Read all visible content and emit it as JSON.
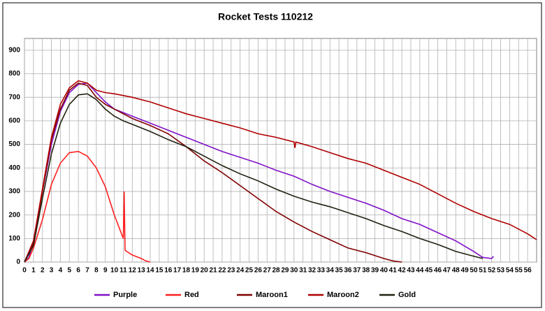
{
  "chart_data": {
    "type": "line",
    "title": "Rocket Tests 110212",
    "xlim": [
      0,
      57
    ],
    "xticks": [
      0,
      1,
      2,
      3,
      4,
      5,
      6,
      7,
      8,
      9,
      10,
      11,
      12,
      13,
      14,
      15,
      16,
      17,
      18,
      19,
      20,
      21,
      22,
      23,
      24,
      25,
      26,
      27,
      28,
      29,
      30,
      31,
      32,
      33,
      34,
      35,
      36,
      37,
      38,
      39,
      40,
      41,
      42,
      43,
      44,
      45,
      46,
      47,
      48,
      49,
      50,
      51,
      52,
      53,
      54,
      55,
      56
    ],
    "ylim": [
      0,
      950
    ],
    "yticks": [
      0,
      100,
      200,
      300,
      400,
      500,
      600,
      700,
      800,
      900
    ],
    "grid": true,
    "legend": "bottom",
    "series": [
      {
        "name": "Purple",
        "color": "#8010c8",
        "x": [
          0,
          0.5,
          1,
          2,
          3,
          4,
          5,
          6,
          7,
          8,
          9,
          10,
          11,
          12,
          14,
          16,
          18,
          20,
          22,
          24,
          26,
          28,
          30,
          32,
          34,
          36,
          38,
          40,
          42,
          44,
          46,
          48,
          50,
          51,
          52,
          52.2
        ],
        "values": [
          0,
          20,
          90,
          300,
          500,
          640,
          720,
          755,
          760,
          720,
          680,
          650,
          635,
          620,
          590,
          560,
          530,
          500,
          470,
          445,
          420,
          390,
          365,
          330,
          300,
          275,
          250,
          220,
          185,
          160,
          125,
          90,
          45,
          20,
          15,
          25
        ]
      },
      {
        "name": "Red",
        "color": "#ff2020",
        "x": [
          0,
          0.5,
          1,
          2,
          3,
          4,
          5,
          6,
          7,
          8,
          9,
          10,
          11,
          11.1,
          11.2,
          12,
          13,
          13.5,
          14
        ],
        "values": [
          0,
          15,
          60,
          180,
          330,
          420,
          465,
          470,
          450,
          400,
          320,
          200,
          100,
          300,
          50,
          30,
          15,
          5,
          0
        ]
      },
      {
        "name": "Maroon1",
        "color": "#800000",
        "x": [
          0,
          1,
          2,
          3,
          4,
          5,
          6,
          7,
          8,
          9,
          10,
          11,
          12,
          14,
          16,
          18,
          20,
          22,
          24,
          26,
          28,
          30,
          32,
          34,
          36,
          38,
          40,
          41,
          42
        ],
        "values": [
          0,
          80,
          300,
          520,
          650,
          730,
          760,
          750,
          700,
          670,
          650,
          630,
          610,
          580,
          545,
          490,
          430,
          380,
          325,
          270,
          215,
          170,
          130,
          95,
          60,
          40,
          15,
          5,
          0
        ]
      },
      {
        "name": "Maroon2",
        "color": "#b00000",
        "x": [
          0,
          1,
          2,
          3,
          4,
          5,
          6,
          7,
          8,
          9,
          10,
          12,
          14,
          16,
          18,
          20,
          22,
          24,
          26,
          28,
          30,
          30.1,
          30.2,
          32,
          34,
          36,
          38,
          40,
          42,
          44,
          46,
          48,
          50,
          52,
          54,
          56,
          57
        ],
        "values": [
          0,
          90,
          310,
          530,
          670,
          740,
          770,
          760,
          730,
          720,
          715,
          700,
          680,
          655,
          630,
          610,
          590,
          570,
          545,
          530,
          510,
          485,
          510,
          490,
          465,
          440,
          420,
          390,
          360,
          330,
          290,
          250,
          215,
          185,
          160,
          120,
          95
        ]
      },
      {
        "name": "Gold",
        "color": "#202010",
        "x": [
          0,
          1,
          2,
          3,
          4,
          5,
          6,
          7,
          8,
          9,
          10,
          11,
          12,
          14,
          16,
          18,
          20,
          22,
          24,
          26,
          28,
          30,
          32,
          34,
          36,
          38,
          40,
          42,
          44,
          46,
          48,
          50,
          51
        ],
        "values": [
          0,
          70,
          270,
          460,
          590,
          670,
          710,
          715,
          690,
          650,
          620,
          600,
          585,
          555,
          520,
          490,
          450,
          410,
          375,
          345,
          310,
          280,
          255,
          235,
          210,
          185,
          155,
          130,
          100,
          75,
          45,
          25,
          15
        ]
      }
    ]
  }
}
